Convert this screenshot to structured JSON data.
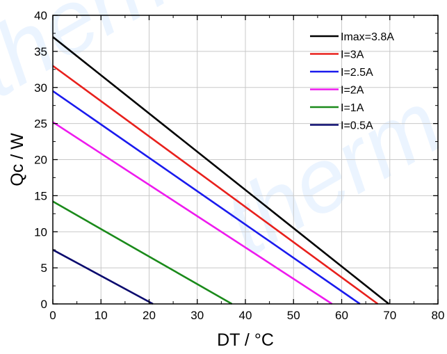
{
  "chart_data": {
    "type": "line",
    "title": "",
    "xlabel": "DT / °C",
    "ylabel": "Qc / W",
    "xlim": [
      0,
      80
    ],
    "ylim": [
      0,
      40
    ],
    "xticks": [
      0,
      10,
      20,
      30,
      40,
      50,
      60,
      70,
      80
    ],
    "yticks": [
      0,
      5,
      10,
      15,
      20,
      25,
      30,
      35,
      40
    ],
    "grid": true,
    "legend_position": "top-right",
    "watermark": "therm",
    "series": [
      {
        "name": "Imax=3.8A",
        "color": "#000000",
        "x": [
          0,
          69.8
        ],
        "y": [
          37.0,
          0
        ]
      },
      {
        "name": "I=3A",
        "color": "#e8201c",
        "x": [
          0,
          67.5
        ],
        "y": [
          33.0,
          0
        ]
      },
      {
        "name": "I=2.5A",
        "color": "#1a1aee",
        "x": [
          0,
          63.8
        ],
        "y": [
          29.5,
          0
        ]
      },
      {
        "name": "I=2A",
        "color": "#ee1aee",
        "x": [
          0,
          58.0
        ],
        "y": [
          25.2,
          0
        ]
      },
      {
        "name": "I=1A",
        "color": "#1a8a1a",
        "x": [
          0,
          37.2
        ],
        "y": [
          14.2,
          0
        ]
      },
      {
        "name": "I=0.5A",
        "color": "#0a0a6e",
        "x": [
          0,
          20.8
        ],
        "y": [
          7.5,
          0
        ]
      }
    ]
  }
}
